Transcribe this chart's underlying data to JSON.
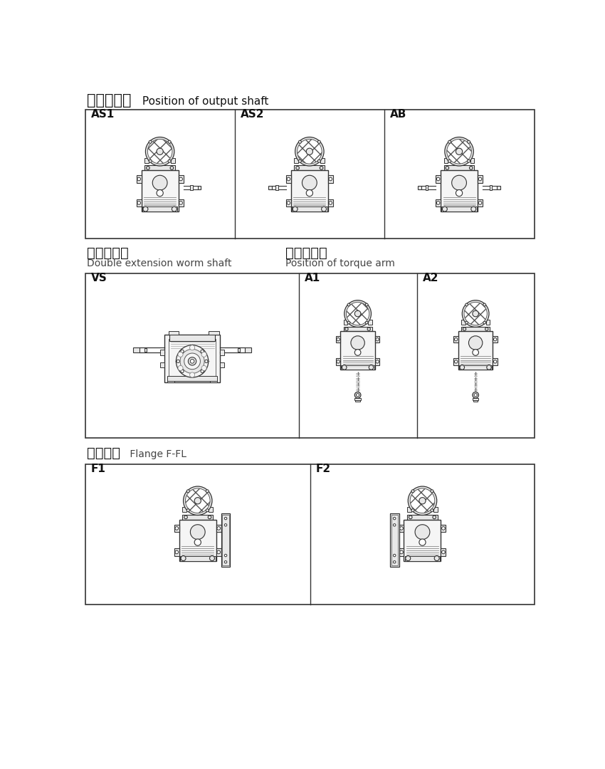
{
  "title_section1_cn": "输出轴配置",
  "title_section1_en": " Position of output shaft",
  "title_section2a_cn": "双向输入轴",
  "title_section2a_en": "Double extension worm shaft",
  "title_section2b_cn": "扭力臂配置",
  "title_section2b_en": "Position of torque arm",
  "title_section3_cn": "法兰位置",
  "title_section3_en": " Flange F-FL",
  "labels_row1": [
    "AS1",
    "AS2",
    "AB"
  ],
  "labels_row2": [
    "VS",
    "A1",
    "A2"
  ],
  "labels_row3": [
    "F1",
    "F2"
  ],
  "bg_color": "#ffffff",
  "line_color": "#333333",
  "fill_light": "#f5f5f5",
  "fill_mid": "#e8e8e8",
  "watermark_color": "#cccccc"
}
